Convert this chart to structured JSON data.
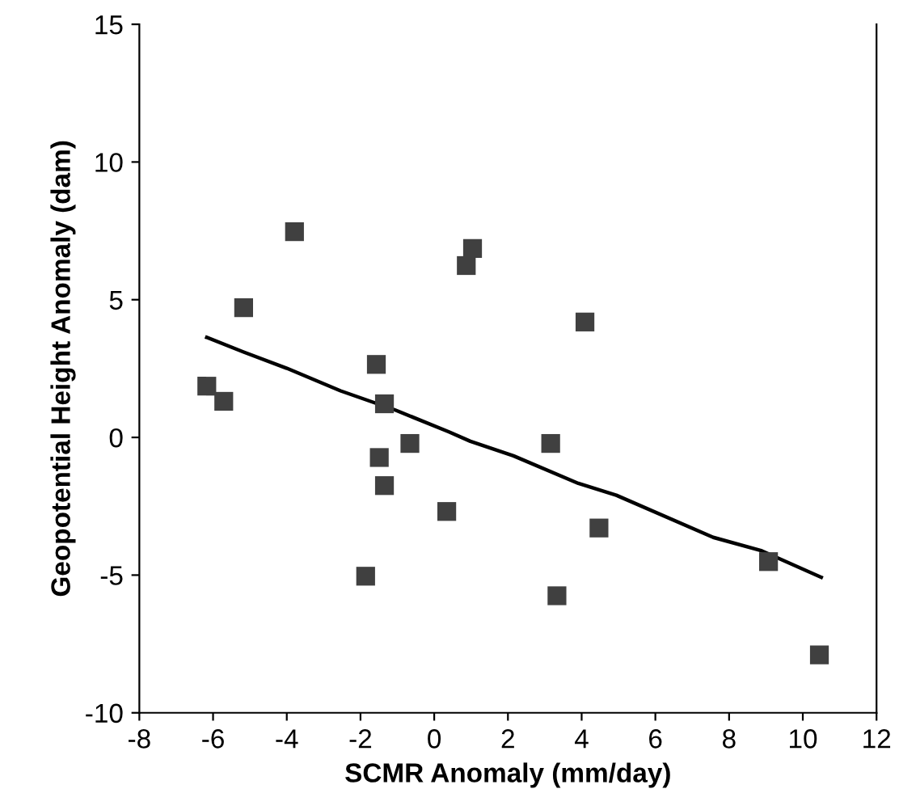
{
  "chart_data": {
    "type": "scatter",
    "xlabel": "SCMR Anomaly (mm/day)",
    "ylabel": "Geopotential Height Anomaly (dam)",
    "xlim": [
      -8,
      12
    ],
    "ylim": [
      -10,
      15
    ],
    "xticks": [
      -8,
      -6,
      -4,
      -2,
      0,
      2,
      4,
      6,
      8,
      10,
      12
    ],
    "yticks": [
      -10,
      -5,
      0,
      5,
      10,
      15
    ],
    "grid": false,
    "legend": false,
    "series": [
      {
        "color": "#404040",
        "marker": "square",
        "x": [
          -6.17,
          -5.71,
          -5.17,
          -3.79,
          -1.57,
          -1.35,
          -0.66,
          -1.49,
          1.04,
          0.87,
          -1.35,
          0.34,
          -1.86,
          4.09,
          3.16,
          4.47,
          3.33,
          9.07,
          10.45
        ],
        "values": [
          1.86,
          1.31,
          4.71,
          7.47,
          2.65,
          1.22,
          -0.22,
          -0.73,
          6.86,
          6.24,
          -1.75,
          -2.69,
          -5.04,
          4.19,
          -0.22,
          -3.29,
          -5.75,
          -4.51,
          -7.9
        ]
      },
      {
        "type": "line",
        "color": "#000000",
        "marker": "none",
        "line_style": "solid",
        "x": [
          -6.17,
          -5.17,
          -4.0,
          -2.54,
          -1.07,
          0.4,
          0.98,
          2.15,
          3.91,
          4.94,
          7.57,
          8.89,
          10.5
        ],
        "values": [
          3.63,
          3.1,
          2.51,
          1.69,
          1.0,
          0.2,
          -0.14,
          -0.67,
          -1.67,
          -2.1,
          -3.63,
          -4.12,
          -5.08
        ]
      }
    ]
  }
}
